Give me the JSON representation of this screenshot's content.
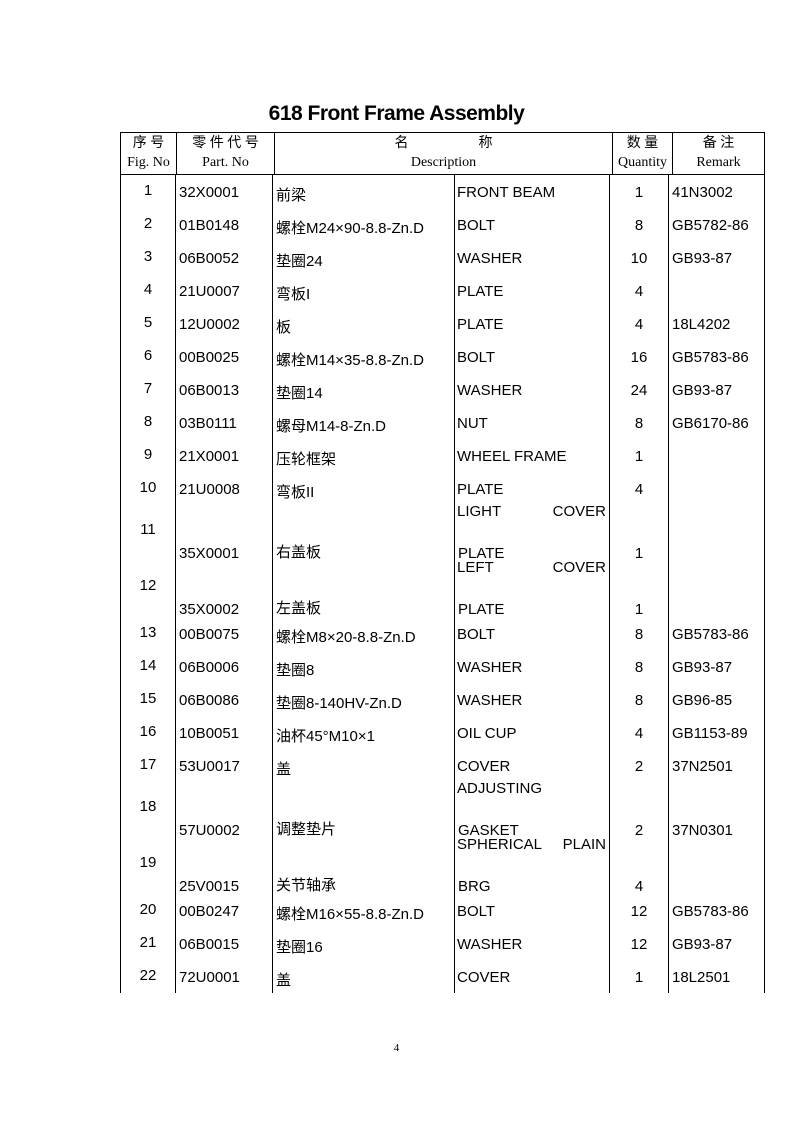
{
  "title": "618 Front Frame Assembly",
  "header": {
    "fig_cn": "序 号",
    "fig_en": "Fig. No",
    "part_cn": "零 件 代 号",
    "part_en": "Part. No",
    "desc_cn": "名　　　　　称",
    "desc_en": "Description",
    "qty_cn": "数 量",
    "qty_en": "Quantity",
    "remark_cn": "备 注",
    "remark_en": "Remark"
  },
  "rows": [
    {
      "fig": "1",
      "part": "32X0001",
      "cn": "前梁",
      "en": "FRONT BEAM",
      "qty": "1",
      "remark": "41N3002"
    },
    {
      "fig": "2",
      "part": "01B0148",
      "cn": "螺栓M24×90-8.8-Zn.D",
      "en": "BOLT",
      "qty": "8",
      "remark": "GB5782-86"
    },
    {
      "fig": "3",
      "part": "06B0052",
      "cn": "垫圈24",
      "en": "WASHER",
      "qty": "10",
      "remark": "GB93-87"
    },
    {
      "fig": "4",
      "part": "21U0007",
      "cn": "弯板I",
      "en": "PLATE",
      "qty": "4",
      "remark": ""
    },
    {
      "fig": "5",
      "part": "12U0002",
      "cn": "板",
      "en": "PLATE",
      "qty": "4",
      "remark": "18L4202"
    },
    {
      "fig": "6",
      "part": "00B0025",
      "cn": "螺栓M14×35-8.8-Zn.D",
      "en": "BOLT",
      "qty": "16",
      "remark": "GB5783-86"
    },
    {
      "fig": "7",
      "part": "06B0013",
      "cn": "垫圈14",
      "en": "WASHER",
      "qty": "24",
      "remark": "GB93-87"
    },
    {
      "fig": "8",
      "part": "03B0111",
      "cn": "螺母M14-8-Zn.D",
      "en": "NUT",
      "qty": "8",
      "remark": "GB6170-86"
    },
    {
      "fig": "9",
      "part": "21X0001",
      "cn": "压轮框架",
      "en": "WHEEL FRAME",
      "qty": "1",
      "remark": ""
    },
    {
      "fig": "10",
      "part": "21U0008",
      "cn": "弯板II",
      "en": "PLATE",
      "qty": "4",
      "remark": ""
    },
    {
      "fig": "11",
      "part": "35X0001",
      "cn": "右盖板",
      "en1a": "LIGHT",
      "en1b": "COVER",
      "en": "PLATE",
      "qty": "1",
      "remark": ""
    },
    {
      "fig": "12",
      "part": "35X0002",
      "cn": "左盖板",
      "en1a": "LEFT",
      "en1b": "COVER",
      "en": "PLATE",
      "qty": "1",
      "remark": ""
    },
    {
      "fig": "13",
      "part": "00B0075",
      "cn": "螺栓M8×20-8.8-Zn.D",
      "en": "BOLT",
      "qty": "8",
      "remark": "GB5783-86"
    },
    {
      "fig": "14",
      "part": "06B0006",
      "cn": "垫圈8",
      "en": "WASHER",
      "qty": "8",
      "remark": "GB93-87"
    },
    {
      "fig": "15",
      "part": "06B0086",
      "cn": "垫圈8-140HV-Zn.D",
      "en": "WASHER",
      "qty": "8",
      "remark": "GB96-85"
    },
    {
      "fig": "16",
      "part": "10B0051",
      "cn": "油杯45°M10×1",
      "en": "OIL CUP",
      "qty": "4",
      "remark": "GB1153-89"
    },
    {
      "fig": "17",
      "part": "53U0017",
      "cn": "盖",
      "en": "COVER",
      "qty": "2",
      "remark": "37N2501"
    },
    {
      "fig": "18",
      "part": "57U0002",
      "cn": "调整垫片",
      "en1a": "ADJUSTING",
      "en1b": "",
      "en": "GASKET",
      "qty": "2",
      "remark": "37N0301"
    },
    {
      "fig": "19",
      "part": "25V0015",
      "cn": "关节轴承",
      "en1a": "SPHERICAL",
      "en1b": "PLAIN",
      "en": "BRG",
      "qty": "4",
      "remark": ""
    },
    {
      "fig": "20",
      "part": "00B0247",
      "cn": "螺栓M16×55-8.8-Zn.D",
      "en": "BOLT",
      "qty": "12",
      "remark": "GB5783-86"
    },
    {
      "fig": "21",
      "part": "06B0015",
      "cn": "垫圈16",
      "en": "WASHER",
      "qty": "12",
      "remark": "GB93-87"
    },
    {
      "fig": "22",
      "part": "72U0001",
      "cn": "盖",
      "en": "COVER",
      "qty": "1",
      "remark": "18L2501"
    }
  ],
  "page_number": "4"
}
